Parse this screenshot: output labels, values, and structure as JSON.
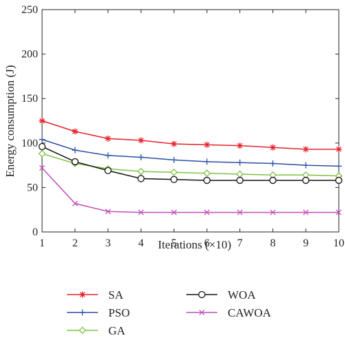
{
  "chart_data": {
    "type": "line",
    "title": "",
    "xlabel": "Iterations (×10)",
    "ylabel": "Energy consumption (J)",
    "x": [
      1,
      2,
      3,
      4,
      5,
      6,
      7,
      8,
      9,
      10
    ],
    "xlim": [
      1,
      10
    ],
    "ylim": [
      0,
      250
    ],
    "xticks": [
      1,
      2,
      3,
      4,
      5,
      6,
      7,
      8,
      9,
      10
    ],
    "yticks": [
      0,
      50,
      100,
      150,
      200,
      250
    ],
    "grid": false,
    "legend_position": "bottom",
    "series": [
      {
        "name": "SA",
        "color": "#e8202a",
        "marker": "asterisk",
        "values": [
          125,
          113,
          105,
          103,
          99,
          98,
          97,
          95,
          93,
          93
        ]
      },
      {
        "name": "PSO",
        "color": "#2b4fa3",
        "marker": "plus",
        "values": [
          104,
          92,
          86,
          84,
          81,
          79,
          78,
          77,
          75,
          74
        ]
      },
      {
        "name": "GA",
        "color": "#7fc242",
        "marker": "diamond",
        "values": [
          88,
          77,
          71,
          68,
          67,
          66,
          65,
          64,
          64,
          63
        ]
      },
      {
        "name": "WOA",
        "color": "#111111",
        "marker": "circle",
        "values": [
          96,
          79,
          69,
          60,
          59,
          58,
          58,
          58,
          58,
          58
        ]
      },
      {
        "name": "CAWOA",
        "color": "#c04fb6",
        "marker": "x",
        "values": [
          72,
          32,
          23,
          22,
          22,
          22,
          22,
          22,
          22,
          22
        ]
      }
    ]
  }
}
